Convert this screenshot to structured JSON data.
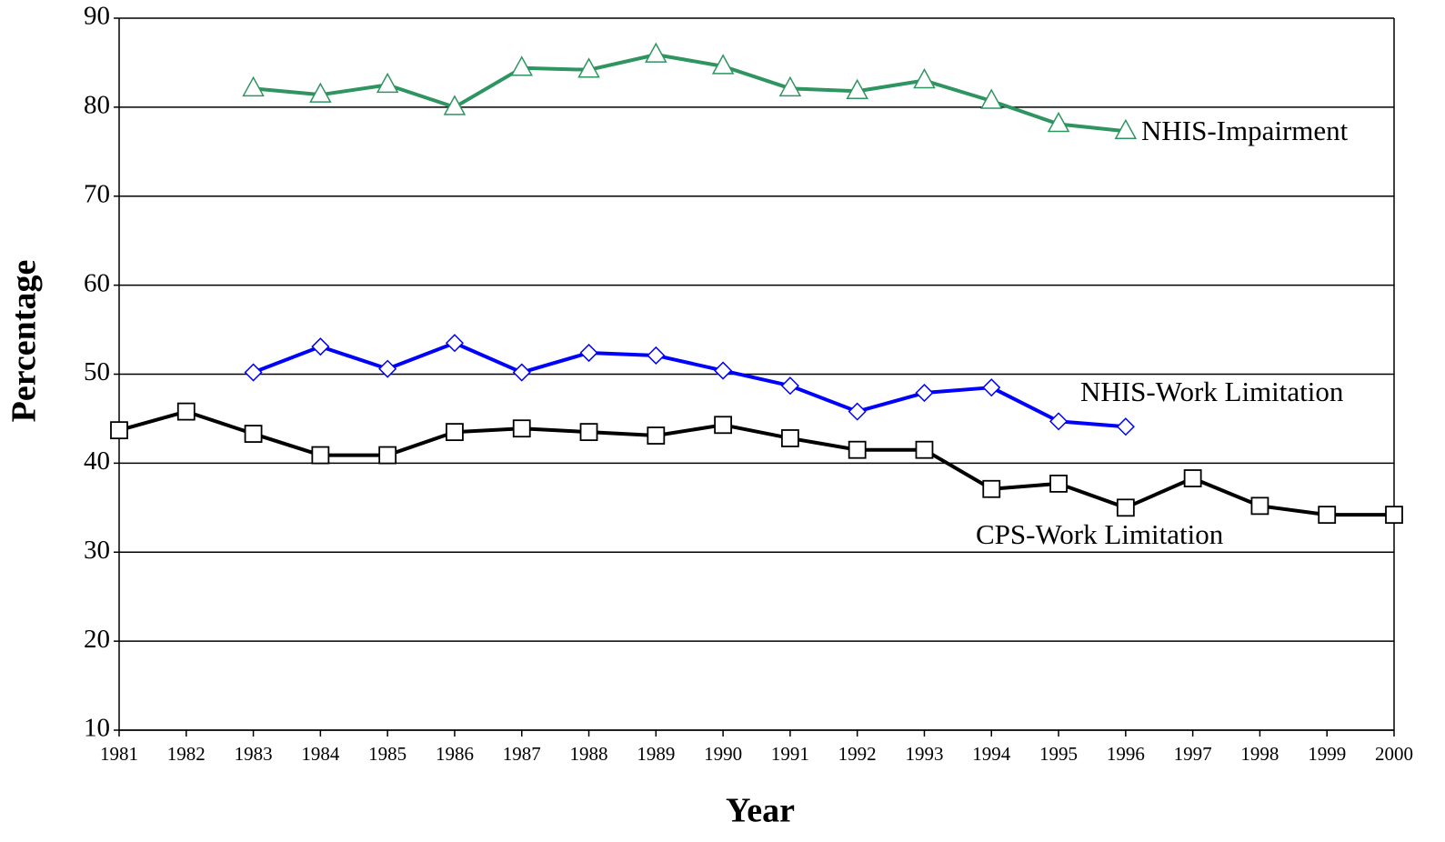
{
  "chart_data": {
    "type": "line",
    "x_label": "Year",
    "y_label": "Percentage",
    "x": [
      1981,
      1982,
      1983,
      1984,
      1985,
      1986,
      1987,
      1988,
      1989,
      1990,
      1991,
      1992,
      1993,
      1994,
      1995,
      1996,
      1997,
      1998,
      1999,
      2000
    ],
    "xlim": [
      1981,
      2000
    ],
    "xticks": [
      1981,
      1982,
      1983,
      1984,
      1985,
      1986,
      1987,
      1988,
      1989,
      1990,
      1991,
      1992,
      1993,
      1994,
      1995,
      1996,
      1997,
      1998,
      1999,
      2000
    ],
    "ylim": [
      10,
      90
    ],
    "yticks": [
      10,
      20,
      30,
      40,
      50,
      60,
      70,
      80,
      90
    ],
    "grid": true,
    "series": [
      {
        "name": "NHIS-Impairment",
        "color": "#2e9460",
        "marker": "triangle",
        "values": [
          null,
          null,
          82.1,
          81.4,
          82.5,
          80.0,
          84.4,
          84.2,
          85.9,
          84.6,
          82.1,
          81.8,
          83.0,
          80.7,
          78.1,
          77.3,
          null,
          null,
          null,
          null
        ]
      },
      {
        "name": "NHIS-Work Limitation",
        "color": "#0000ff",
        "marker": "diamond",
        "values": [
          null,
          null,
          50.2,
          53.1,
          50.6,
          53.5,
          50.2,
          52.4,
          52.1,
          50.4,
          48.7,
          45.8,
          47.9,
          48.5,
          44.7,
          44.1,
          null,
          null,
          null,
          null
        ]
      },
      {
        "name": "CPS-Work Limitation",
        "color": "#000000",
        "marker": "square",
        "values": [
          43.7,
          45.8,
          43.3,
          40.9,
          40.9,
          43.5,
          43.9,
          43.5,
          43.1,
          44.3,
          42.8,
          41.5,
          41.5,
          37.1,
          37.7,
          35.0,
          38.3,
          35.2,
          34.2,
          34.2
        ]
      }
    ]
  }
}
